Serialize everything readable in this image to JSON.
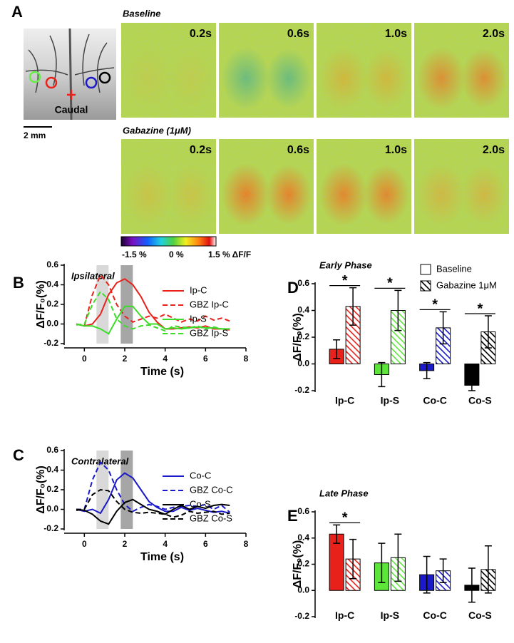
{
  "panel_a": {
    "panel_label": "A",
    "brain": {
      "label": "Caudal",
      "scale_bar": "2 mm"
    },
    "rows": [
      {
        "title": "Baseline"
      },
      {
        "title": "Gabazine (1μM)"
      }
    ],
    "time_labels": [
      "0.2s",
      "0.6s",
      "1.0s",
      "2.0s"
    ],
    "colorbar": [
      "-1.5 %",
      "0 %",
      "1.5 % ΔF/F"
    ]
  },
  "chart_data": [
    {
      "panel_label": "B",
      "type": "line",
      "title": "Ipsilateral",
      "xlabel": "Time (s)",
      "ylabel": "ΔF/F₀(%)",
      "xlim": [
        -1,
        8
      ],
      "xticks": [
        0,
        2,
        4,
        6,
        8
      ],
      "ylim": [
        -0.2,
        0.6
      ],
      "yticks": [
        -0.2,
        {
          "value": 0,
          "label": "0.0"
        },
        0.2,
        0.4,
        0.6
      ],
      "spans": [
        {
          "x": [
            0.6,
            1.2
          ],
          "color": "#d9d9d9"
        },
        {
          "x": [
            1.8,
            2.4
          ],
          "color": "#a6a6a6"
        }
      ],
      "x": [
        -0.4,
        0,
        0.4,
        0.8,
        1.2,
        1.6,
        2,
        2.4,
        2.8,
        3.2,
        3.6,
        4,
        4.4,
        4.8,
        5.2,
        5.6,
        6,
        6.4,
        6.8,
        7.2
      ],
      "series": [
        {
          "name": "Ip-C",
          "color": "#e8211b",
          "dashed": false,
          "values": [
            0,
            -0.02,
            0,
            0.1,
            0.3,
            0.42,
            0.46,
            0.4,
            0.28,
            0.12,
            0.02,
            -0.05,
            -0.05,
            -0.04,
            -0.03,
            -0.04,
            -0.02,
            -0.05,
            -0.05,
            -0.06
          ]
        },
        {
          "name": "GBZ Ip-C",
          "color": "#e8211b",
          "dashed": true,
          "values": [
            0,
            -0.02,
            0.3,
            0.5,
            0.4,
            0.2,
            0.08,
            0.02,
            0.05,
            0.08,
            0.06,
            0.1,
            0.06,
            0.02,
            0.05,
            0.03,
            0.08,
            0.04,
            0.06,
            0.03
          ]
        },
        {
          "name": "Ip-S",
          "color": "#3ddc2a",
          "dashed": false,
          "values": [
            0,
            -0.02,
            -0.02,
            -0.05,
            -0.1,
            0.05,
            0.18,
            0.18,
            0.08,
            0,
            0,
            -0.05,
            -0.04,
            -0.05,
            -0.04,
            -0.03,
            -0.04,
            -0.04,
            -0.05,
            -0.05
          ]
        },
        {
          "name": "GBZ Ip-S",
          "color": "#3ddc2a",
          "dashed": true,
          "values": [
            -0.01,
            0,
            0.2,
            0.33,
            0.25,
            0.05,
            -0.02,
            -0.05,
            -0.02,
            -0.01,
            -0.04,
            -0.07,
            -0.02,
            -0.03,
            -0.04,
            -0.02,
            -0.05,
            -0.03,
            -0.05,
            -0.05
          ]
        }
      ]
    },
    {
      "panel_label": "C",
      "type": "line",
      "title": "Contralateral",
      "xlabel": "Time (s)",
      "ylabel": "ΔF/F₀(%)",
      "xlim": [
        -1,
        8
      ],
      "xticks": [
        0,
        2,
        4,
        6,
        8
      ],
      "ylim": [
        -0.2,
        0.6
      ],
      "yticks": [
        -0.2,
        {
          "value": 0,
          "label": "0.0"
        },
        0.2,
        0.4,
        0.6
      ],
      "spans": [
        {
          "x": [
            0.6,
            1.2
          ],
          "color": "#d9d9d9"
        },
        {
          "x": [
            1.8,
            2.4
          ],
          "color": "#a6a6a6"
        }
      ],
      "x": [
        -0.4,
        0,
        0.4,
        0.8,
        1.2,
        1.6,
        2,
        2.4,
        2.8,
        3.2,
        3.6,
        4,
        4.4,
        4.8,
        5.2,
        5.6,
        6,
        6.4,
        6.8,
        7.2
      ],
      "series": [
        {
          "name": "Co-C",
          "color": "#1a1acb",
          "dashed": false,
          "values": [
            0,
            -0.02,
            0,
            -0.04,
            0.1,
            0.3,
            0.37,
            0.32,
            0.2,
            0.08,
            0.02,
            -0.02,
            -0.02,
            0.02,
            -0.01,
            0.01,
            -0.01,
            -0.03,
            -0.02,
            -0.04
          ]
        },
        {
          "name": "GBZ Co-C",
          "color": "#1a1acb",
          "dashed": true,
          "values": [
            0,
            0,
            0.3,
            0.48,
            0.4,
            0.2,
            0.05,
            -0.02,
            0.02,
            0.05,
            0.03,
            0,
            0.02,
            0.03,
            0.04,
            0.03,
            0.05,
            0,
            0.04,
            -0.03
          ]
        },
        {
          "name": "Co-S",
          "color": "#000000",
          "dashed": false,
          "values": [
            0,
            -0.01,
            -0.05,
            -0.12,
            -0.15,
            -0.02,
            0.07,
            0.1,
            0.05,
            0,
            -0.02,
            -0.05,
            0,
            0.04,
            0,
            0.03,
            0.01,
            0.04,
            0.05,
            0.04
          ]
        },
        {
          "name": "GBZ Co-S",
          "color": "#000000",
          "dashed": true,
          "values": [
            -0.01,
            0,
            0.15,
            0.2,
            0.19,
            0.08,
            0,
            -0.03,
            -0.04,
            -0.03,
            -0.04,
            -0.05,
            -0.08,
            -0.06,
            -0.02,
            -0.04,
            -0.03,
            -0.02,
            -0.05,
            -0.04
          ]
        }
      ]
    },
    {
      "panel_label": "D",
      "type": "bar",
      "title": "Early Phase",
      "ylabel": "ΔF/F₀(%)",
      "categories": [
        "Ip-C",
        "Ip-S",
        "Co-C",
        "Co-S"
      ],
      "category_colors": [
        "#e8211b",
        "#5ee53b",
        "#1a1acb",
        "#000000"
      ],
      "ylim": [
        -0.2,
        0.6
      ],
      "yticks": [
        -0.2,
        {
          "value": 0,
          "label": "0.0"
        },
        0.2,
        0.4,
        0.6
      ],
      "series": [
        {
          "name": "Baseline",
          "hatched": false,
          "values": [
            0.11,
            -0.08,
            -0.05,
            -0.16
          ],
          "errors": [
            0.07,
            0.09,
            0.06,
            0.04
          ]
        },
        {
          "name": "Gabazine 1μM",
          "hatched": true,
          "values": [
            0.43,
            0.4,
            0.27,
            0.24
          ],
          "errors": [
            0.14,
            0.15,
            0.12,
            0.12
          ]
        }
      ],
      "significance": [
        {
          "category": 0,
          "label": "*"
        },
        {
          "category": 1,
          "label": "*"
        },
        {
          "category": 2,
          "label": "*"
        },
        {
          "category": 3,
          "label": "*"
        }
      ],
      "legend": true
    },
    {
      "panel_label": "E",
      "type": "bar",
      "title": "Late Phase",
      "ylabel": "ΔF/F₀(%)",
      "categories": [
        "Ip-C",
        "Ip-S",
        "Co-C",
        "Co-S"
      ],
      "category_colors": [
        "#e8211b",
        "#5ee53b",
        "#1a1acb",
        "#000000"
      ],
      "ylim": [
        -0.2,
        0.6
      ],
      "yticks": [
        -0.2,
        {
          "value": 0,
          "label": "0.0"
        },
        0.2,
        0.4,
        0.6
      ],
      "series": [
        {
          "name": "Baseline",
          "hatched": false,
          "values": [
            0.43,
            0.21,
            0.12,
            0.04
          ],
          "errors": [
            0.07,
            0.15,
            0.14,
            0.13
          ]
        },
        {
          "name": "Gabazine 1μM",
          "hatched": true,
          "values": [
            0.24,
            0.25,
            0.15,
            0.16
          ],
          "errors": [
            0.15,
            0.18,
            0.09,
            0.18
          ]
        }
      ],
      "significance": [
        {
          "category": 0,
          "label": "*"
        }
      ],
      "legend": false
    }
  ]
}
